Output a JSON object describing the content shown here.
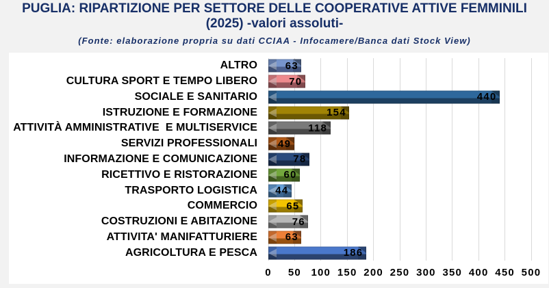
{
  "title": {
    "line1": "PUGLIA: RIPARTIZIONE PER SETTORE DELLE COOPERATIVE ATTIVE FEMMINILI",
    "line2": "(2025) -valori assoluti-",
    "source": "(Fonte: elaborazione propria su dati CCIAA - Infocamere/Banca dati Stock View)"
  },
  "colors": {
    "title_text": "#172F67",
    "page_background": "#F2F2F2",
    "panel_background": "#FFFFFF",
    "gridline": "#D9D9D9",
    "category_text": "#000000",
    "value_text": "#000000",
    "axis_text": "#000000"
  },
  "chart_data": {
    "type": "bar",
    "orientation": "horizontal",
    "title": "PUGLIA: RIPARTIZIONE PER SETTORE DELLE COOPERATIVE ATTIVE FEMMINILI (2025) -valori assoluti-",
    "subtitle": "(Fonte: elaborazione propria su dati CCIAA - Infocamere/Banca dati Stock View)",
    "categories": [
      "ALTRO",
      "CULTURA SPORT E TEMPO LIBERO",
      "SOCIALE E SANITARIO",
      "ISTRUZIONE E FORMAZIONE",
      "ATTIVITÀ AMMINISTRATIVE  E MULTISERVICE",
      "SERVIZI PROFESSIONALI",
      "INFORMAZIONE E COMUNICAZIONE",
      "RICETTIVO E RISTORAZIONE",
      "TRASPORTO LOGISTICA",
      "COMMERCIO",
      "COSTRUZIONI E ABITAZIONE",
      "ATTIVITA' MANIFATTURIERE",
      "AGRICOLTURA E PESCA"
    ],
    "values": [
      63,
      70,
      440,
      154,
      118,
      49,
      78,
      60,
      44,
      65,
      76,
      63,
      186
    ],
    "bar_colors": [
      {
        "face": "#7795CC",
        "dark": "#4C608E"
      },
      {
        "face": "#EE8A8D",
        "dark": "#96555A"
      },
      {
        "face": "#2E689C",
        "dark": "#1C3F60"
      },
      {
        "face": "#A18405",
        "dark": "#6B5803"
      },
      {
        "face": "#7A7A7A",
        "dark": "#484848"
      },
      {
        "face": "#B25A17",
        "dark": "#71380B"
      },
      {
        "face": "#2B4B7E",
        "dark": "#182C4D"
      },
      {
        "face": "#73A73D",
        "dark": "#466721"
      },
      {
        "face": "#66A0D8",
        "dark": "#3B658F"
      },
      {
        "face": "#F3C300",
        "dark": "#9B7C00"
      },
      {
        "face": "#B8B8B8",
        "dark": "#707070"
      },
      {
        "face": "#EE8038",
        "dark": "#9A5210"
      },
      {
        "face": "#4A78CB",
        "dark": "#2B436F"
      }
    ],
    "data_labels": [
      63,
      70,
      440,
      154,
      118,
      49,
      78,
      60,
      44,
      65,
      76,
      63,
      186
    ],
    "xlim": [
      0,
      500
    ],
    "x_ticks": [
      0,
      50,
      100,
      150,
      200,
      250,
      300,
      350,
      400,
      450,
      500
    ],
    "xlabel": "",
    "ylabel": "",
    "grid": true,
    "legend": false
  }
}
